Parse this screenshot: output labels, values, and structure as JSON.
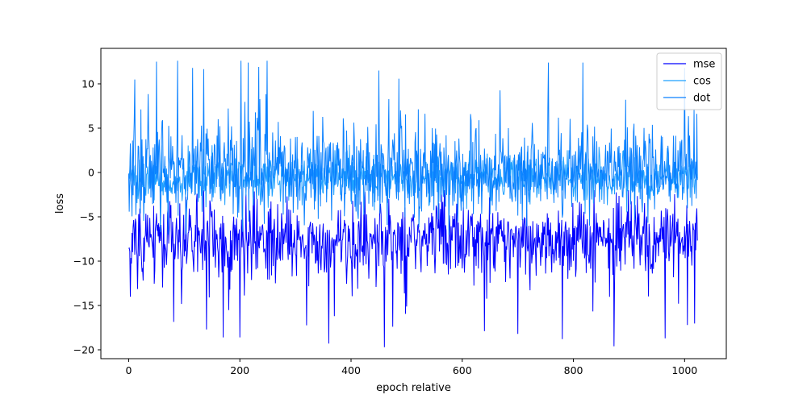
{
  "chart_data": {
    "type": "line",
    "title": "",
    "xlabel": "epoch relative",
    "ylabel": "loss",
    "xlim": [
      -50,
      1075
    ],
    "ylim": [
      -21,
      14
    ],
    "xticks": [
      0,
      200,
      400,
      600,
      800,
      1000
    ],
    "yticks": [
      -20,
      -15,
      -10,
      -5,
      0,
      5,
      10
    ],
    "grid": false,
    "legend_position": "top-right",
    "n_points": 1024,
    "series": [
      {
        "name": "mse",
        "color": "#0000ff",
        "pattern": "noisy",
        "mean": -7.5,
        "std": 2.2,
        "min": -19.6,
        "max": -2.0,
        "dips": [
          [
            140,
            -17.7
          ],
          [
            170,
            -18.6
          ],
          [
            200,
            -18.6
          ],
          [
            360,
            -19.3
          ],
          [
            460,
            -19.7
          ],
          [
            475,
            -17.4
          ],
          [
            640,
            -17.9
          ],
          [
            700,
            -18.2
          ],
          [
            780,
            -18.8
          ],
          [
            965,
            -18.7
          ],
          [
            1005,
            -17.2
          ]
        ]
      },
      {
        "name": "cos",
        "color": "#1ea0ff",
        "pattern": "noisy",
        "mean": -0.5,
        "std": 1.3,
        "min": -5.0,
        "max": 6.0,
        "dips": []
      },
      {
        "name": "dot",
        "color": "#0a80ff",
        "pattern": "noisy",
        "mean": 0.3,
        "std": 2.6,
        "min": -11.0,
        "max": 12.6,
        "peaks": [
          [
            50,
            12.5
          ],
          [
            88,
            12.6
          ],
          [
            115,
            11.8
          ],
          [
            215,
            12.4
          ],
          [
            450,
            11.5
          ],
          [
            755,
            12.4
          ],
          [
            1000,
            11.8
          ]
        ]
      }
    ]
  }
}
